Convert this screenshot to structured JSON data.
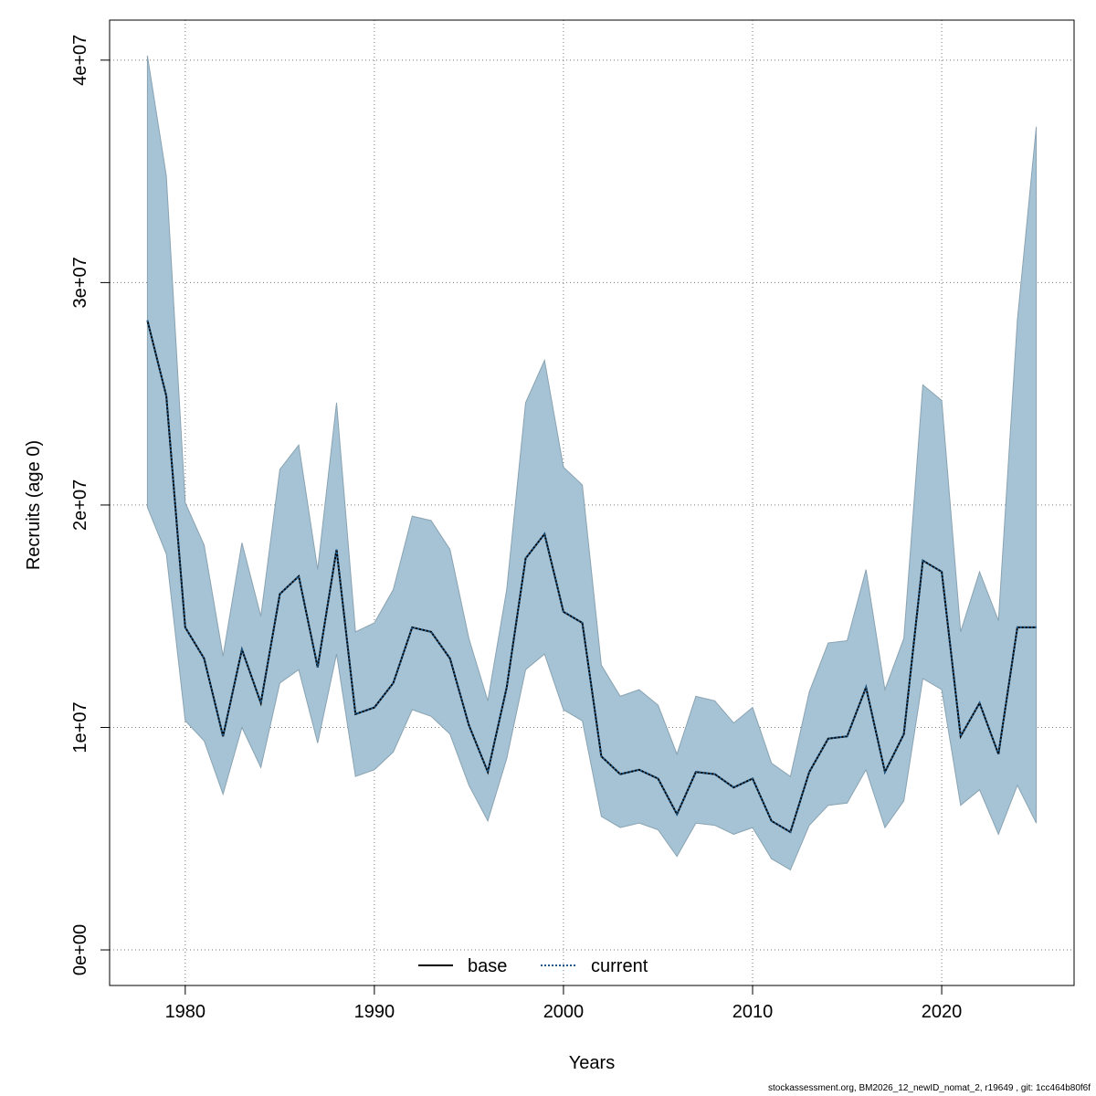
{
  "chart_data": {
    "type": "line",
    "xlabel": "Years",
    "ylabel": "Recruits (age 0)",
    "xlim": [
      1976,
      2027
    ],
    "ylim": [
      -1600000,
      41800000
    ],
    "x_ticks": [
      1980,
      1990,
      2000,
      2010,
      2020
    ],
    "y_ticks": [
      {
        "value": 0,
        "label": "0e+00"
      },
      {
        "value": 10000000,
        "label": "1e+07"
      },
      {
        "value": 20000000,
        "label": "2e+07"
      },
      {
        "value": 30000000,
        "label": "3e+07"
      },
      {
        "value": 40000000,
        "label": "4e+07"
      }
    ],
    "grid": true,
    "legend_position": "bottom-center",
    "x": [
      1978,
      1979,
      1980,
      1981,
      1982,
      1983,
      1984,
      1985,
      1986,
      1987,
      1988,
      1989,
      1990,
      1991,
      1992,
      1993,
      1994,
      1995,
      1996,
      1997,
      1998,
      1999,
      2000,
      2001,
      2002,
      2003,
      2004,
      2005,
      2006,
      2007,
      2008,
      2009,
      2010,
      2011,
      2012,
      2013,
      2014,
      2015,
      2016,
      2017,
      2018,
      2019,
      2020,
      2021,
      2022,
      2023,
      2024,
      2025
    ],
    "band": {
      "color": "#a5c3d4",
      "upper": [
        40200000,
        34800000,
        20100000,
        18200000,
        13200000,
        18300000,
        15000000,
        21600000,
        22700000,
        17100000,
        24600000,
        14300000,
        14700000,
        16200000,
        19500000,
        19300000,
        18000000,
        14000000,
        11200000,
        16200000,
        24600000,
        26500000,
        21700000,
        20900000,
        12800000,
        11400000,
        11700000,
        11000000,
        8800000,
        11400000,
        11200000,
        10200000,
        10900000,
        8400000,
        7800000,
        11600000,
        13800000,
        13900000,
        17100000,
        11700000,
        14000000,
        25400000,
        24700000,
        14300000,
        17000000,
        14800000,
        28300000,
        37000000
      ],
      "lower": [
        19900000,
        17800000,
        10300000,
        9400000,
        7000000,
        10000000,
        8200000,
        12000000,
        12600000,
        9300000,
        13300000,
        7800000,
        8100000,
        8900000,
        10800000,
        10500000,
        9700000,
        7400000,
        5800000,
        8600000,
        12600000,
        13300000,
        10800000,
        10300000,
        6000000,
        5500000,
        5700000,
        5400000,
        4200000,
        5700000,
        5600000,
        5200000,
        5500000,
        4100000,
        3600000,
        5600000,
        6500000,
        6600000,
        8100000,
        5500000,
        6700000,
        12200000,
        11700000,
        6500000,
        7200000,
        5200000,
        7400000,
        5700000
      ]
    },
    "series": [
      {
        "name": "base",
        "color": "#000000",
        "dash": "solid",
        "values": [
          28300000,
          24900000,
          14500000,
          13100000,
          9600000,
          13500000,
          11100000,
          16000000,
          16800000,
          12700000,
          18000000,
          10600000,
          10900000,
          12000000,
          14500000,
          14300000,
          13100000,
          10100000,
          8000000,
          11800000,
          17600000,
          18700000,
          15200000,
          14700000,
          8700000,
          7900000,
          8100000,
          7700000,
          6100000,
          8000000,
          7900000,
          7300000,
          7700000,
          5800000,
          5300000,
          8000000,
          9500000,
          9600000,
          11800000,
          8000000,
          9700000,
          17500000,
          17000000,
          9600000,
          11100000,
          8800000,
          14500000,
          14500000
        ]
      },
      {
        "name": "current",
        "color": "#1f5a8a",
        "dash": "dotted",
        "values": [
          28300000,
          24900000,
          14500000,
          13100000,
          9600000,
          13500000,
          11100000,
          16000000,
          16800000,
          12700000,
          18000000,
          10600000,
          10900000,
          12000000,
          14500000,
          14300000,
          13100000,
          10100000,
          8000000,
          11800000,
          17600000,
          18700000,
          15200000,
          14700000,
          8700000,
          7900000,
          8100000,
          7700000,
          6100000,
          8000000,
          7900000,
          7300000,
          7700000,
          5800000,
          5300000,
          8000000,
          9500000,
          9600000,
          11800000,
          8000000,
          9700000,
          17500000,
          17000000,
          9600000,
          11100000,
          8800000,
          14500000,
          14500000
        ]
      }
    ]
  },
  "footer_text": "stockassessment.org, BM2026_12_newID_nomat_2, r19649 , git: 1cc464b80f6f"
}
